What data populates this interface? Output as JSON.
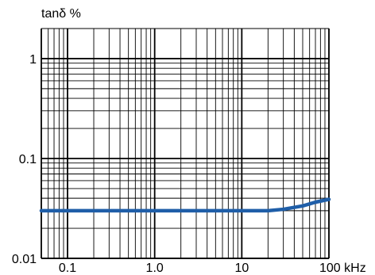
{
  "chart_data": {
    "type": "line",
    "ylabel": "tanδ %",
    "xscale": "log",
    "yscale": "log",
    "xlim": [
      0.05,
      100
    ],
    "ylim": [
      0.01,
      2
    ],
    "grid": true,
    "x_tick_labels": [
      {
        "value": 0.1,
        "label": "0.1"
      },
      {
        "value": 1,
        "label": "1.0"
      },
      {
        "value": 10,
        "label": "10"
      },
      {
        "value": 100,
        "label": "100 kHz"
      }
    ],
    "y_tick_labels": [
      {
        "value": 1,
        "label": "1"
      },
      {
        "value": 0.1,
        "label": "0.1"
      },
      {
        "value": 0.01,
        "label": "0.01"
      }
    ],
    "series": [
      {
        "color": "#1f5ea8",
        "points": [
          {
            "x": 0.05,
            "y": 0.03
          },
          {
            "x": 1,
            "y": 0.03
          },
          {
            "x": 10,
            "y": 0.03
          },
          {
            "x": 20,
            "y": 0.03
          },
          {
            "x": 30,
            "y": 0.031
          },
          {
            "x": 50,
            "y": 0.0335
          },
          {
            "x": 70,
            "y": 0.0365
          },
          {
            "x": 100,
            "y": 0.039
          }
        ]
      }
    ]
  }
}
